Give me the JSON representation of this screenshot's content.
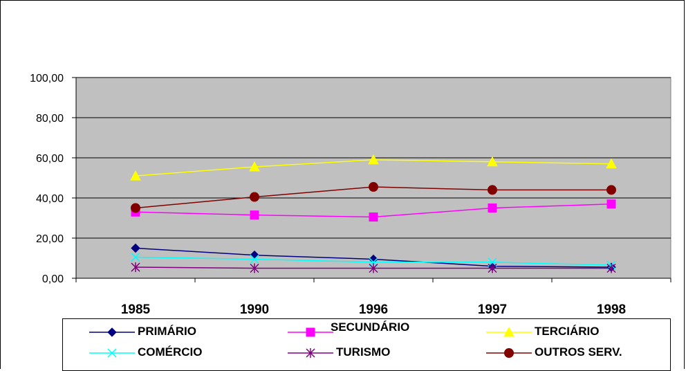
{
  "chart_data": {
    "type": "line",
    "categories": [
      "1985",
      "1990",
      "1996",
      "1997",
      "1998"
    ],
    "ylim": [
      0,
      100
    ],
    "yticks": [
      "0,00",
      "20,00",
      "40,00",
      "60,00",
      "80,00",
      "100,00"
    ],
    "grid": true,
    "legend_position": "bottom",
    "plot_background": "#c0c0c0",
    "series": [
      {
        "name": "PRIMÁRIO",
        "color": "#000080",
        "marker": "diamond",
        "values": [
          15.0,
          11.5,
          9.5,
          6.0,
          5.5
        ]
      },
      {
        "name": "SECUNDÁRIO",
        "color": "#ff00ff",
        "marker": "square",
        "values": [
          33.0,
          31.5,
          30.5,
          35.0,
          37.0
        ]
      },
      {
        "name": "TERCIÁRIO",
        "color": "#ffff00",
        "marker": "triangle",
        "values": [
          51.0,
          55.5,
          59.0,
          58.0,
          57.0
        ]
      },
      {
        "name": "COMÉRCIO",
        "color": "#00ffff",
        "marker": "x",
        "values": [
          10.5,
          9.5,
          8.0,
          8.0,
          6.5
        ]
      },
      {
        "name": "TURISMO",
        "color": "#800080",
        "marker": "asterisk",
        "values": [
          5.5,
          5.0,
          5.0,
          5.0,
          5.0
        ]
      },
      {
        "name": "OUTROS SERV.",
        "color": "#800000",
        "marker": "circle",
        "values": [
          35.0,
          40.5,
          45.5,
          44.0,
          44.0
        ]
      }
    ]
  }
}
